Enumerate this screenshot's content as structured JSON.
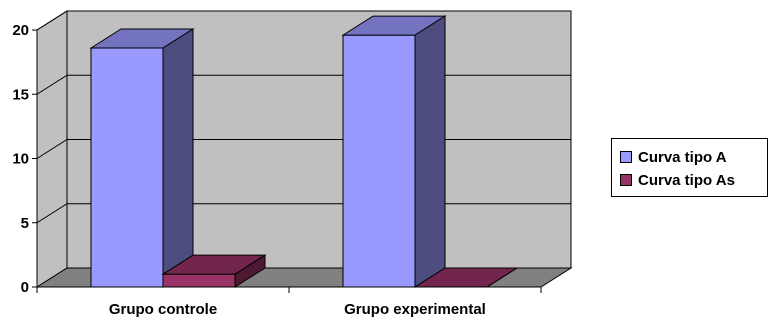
{
  "chart_data": {
    "type": "bar",
    "categories": [
      "Grupo controle",
      "Grupo experimental"
    ],
    "series": [
      {
        "name": "Curva tipo A",
        "values": [
          18.6,
          19.6
        ],
        "color": "#9999FF"
      },
      {
        "name": "Curva tipo As",
        "values": [
          1.0,
          0.0
        ],
        "color": "#993366"
      }
    ],
    "ylim": [
      0,
      20
    ],
    "yticks": [
      "0",
      "5",
      "10",
      "15",
      "20"
    ],
    "grid": true,
    "legend_position": "right",
    "background_color": "#C0C0C0"
  }
}
